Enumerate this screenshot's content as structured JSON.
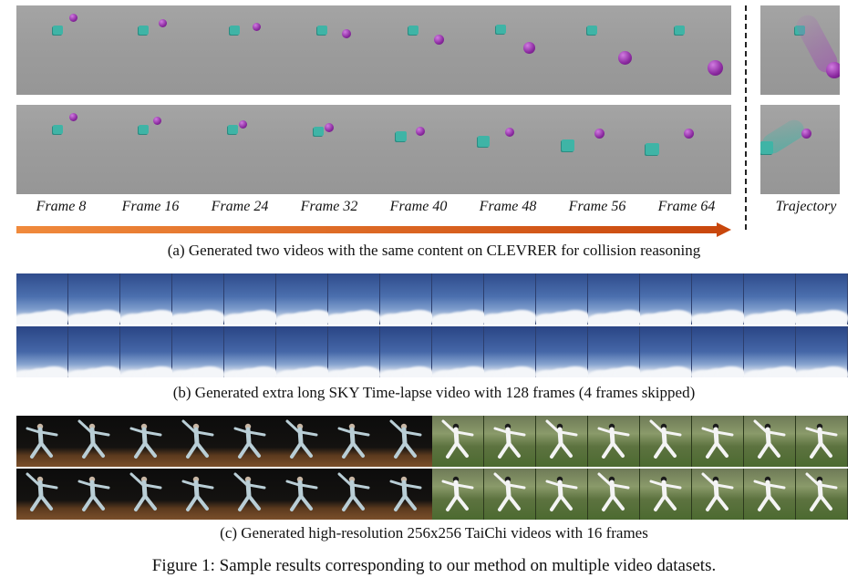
{
  "clevrer": {
    "frame_labels": [
      "Frame 8",
      "Frame 16",
      "Frame 24",
      "Frame 32",
      "Frame 40",
      "Frame 48",
      "Frame 56",
      "Frame 64"
    ],
    "trajectory_label": "Trajectory",
    "caption": "(a) Generated two videos with the same content on CLEVRER for collision reasoning",
    "arrow_color": "#e05a14"
  },
  "sky": {
    "caption": "(b) Generated extra long SKY Time-lapse video with 128 frames (4 frames skipped)",
    "frames_per_row": 16
  },
  "taichi": {
    "caption": "(c) Generated high-resolution 256x256 TaiChi videos with 16 frames",
    "frames_per_half": 8
  },
  "figure_caption": "Figure 1: Sample results corresponding to our method on multiple video datasets."
}
